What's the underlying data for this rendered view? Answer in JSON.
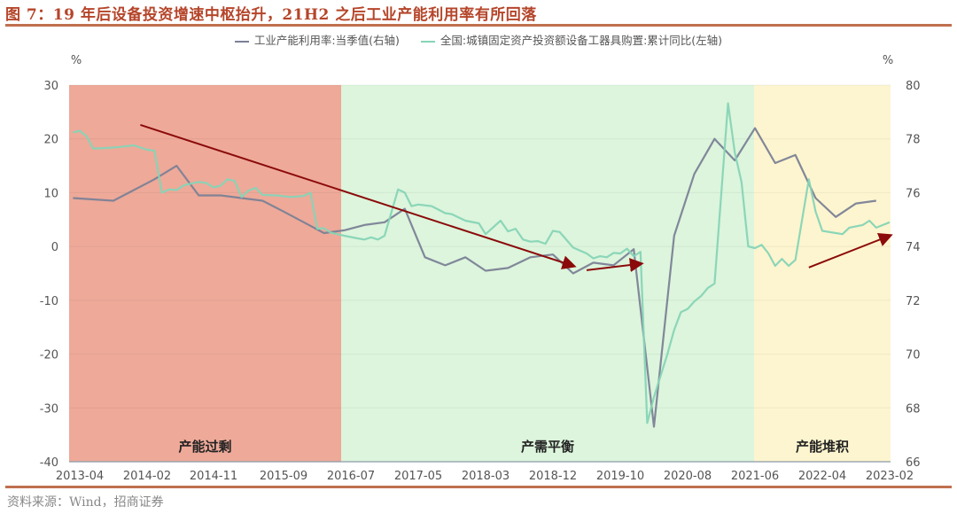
{
  "title": "图 7：19 年后设备投资增速中枢抬升，21H2 之后工业产能利用率有所回落",
  "source": "资料来源：Wind，招商证券",
  "legend": [
    {
      "label": "工业产能利用率:当季值(右轴)",
      "color": "#7b8196"
    },
    {
      "label": "全国:城镇固定资产投资额设备工器具购置:累计同比(左轴)",
      "color": "#86d4b6"
    }
  ],
  "colors": {
    "utilization": "#7b8196",
    "equipment": "#86d4b6",
    "arrow": "#8b0a0a",
    "region_overcapacity": "#eea999",
    "region_balance": "#dcf5dc",
    "region_accumulation": "#fdf5cf"
  },
  "chart_data": {
    "type": "line",
    "title": "19 年后设备投资增速中枢抬升，21H2 之后工业产能利用率有所回落",
    "left_axis": {
      "label": "%",
      "ticks": [
        30,
        20,
        10,
        0,
        -10,
        -20,
        -30,
        -40
      ],
      "range": [
        -40,
        30
      ]
    },
    "right_axis": {
      "label": "%",
      "ticks": [
        80,
        78,
        76,
        74,
        72,
        70,
        68,
        66
      ],
      "range": [
        66,
        80
      ]
    },
    "x_ticks": [
      "2013-04",
      "2014-02",
      "2014-11",
      "2015-09",
      "2016-07",
      "2017-05",
      "2018-03",
      "2018-12",
      "2019-10",
      "2020-08",
      "2021-06",
      "2022-04",
      "2023-02"
    ],
    "regions": [
      {
        "label": "产能过剩",
        "from": "2013-04",
        "to": "2016-07"
      },
      {
        "label": "产需平衡",
        "from": "2016-07",
        "to": "2021-06"
      },
      {
        "label": "产能堆积",
        "from": "2021-06",
        "to": "2023-02"
      }
    ],
    "series": [
      {
        "name": "工业产能利用率:当季值(右轴)",
        "axis": "right",
        "points": [
          [
            "2013-03",
            75.8
          ],
          [
            "2013-09",
            75.7
          ],
          [
            "2014-03",
            76.5
          ],
          [
            "2014-06",
            77.0
          ],
          [
            "2014-09",
            75.9
          ],
          [
            "2014-12",
            75.9
          ],
          [
            "2015-03",
            75.8
          ],
          [
            "2015-06",
            75.7
          ],
          [
            "2015-09",
            75.3
          ],
          [
            "2015-12",
            74.9
          ],
          [
            "2016-03",
            74.5
          ],
          [
            "2016-06",
            74.6
          ],
          [
            "2016-09",
            74.8
          ],
          [
            "2016-12",
            74.9
          ],
          [
            "2017-03",
            75.4
          ],
          [
            "2017-06",
            73.6
          ],
          [
            "2017-09",
            73.3
          ],
          [
            "2017-12",
            73.6
          ],
          [
            "2018-03",
            73.1
          ],
          [
            "2018-06",
            73.2
          ],
          [
            "2018-09",
            73.6
          ],
          [
            "2018-12",
            73.7
          ],
          [
            "2019-03",
            73.0
          ],
          [
            "2019-06",
            73.4
          ],
          [
            "2019-09",
            73.3
          ],
          [
            "2019-12",
            73.9
          ],
          [
            "2020-03",
            67.3
          ],
          [
            "2020-06",
            74.4
          ],
          [
            "2020-09",
            76.7
          ],
          [
            "2020-12",
            78.0
          ],
          [
            "2021-03",
            77.2
          ],
          [
            "2021-06",
            78.4
          ],
          [
            "2021-09",
            77.1
          ],
          [
            "2021-12",
            77.4
          ],
          [
            "2022-03",
            75.8
          ],
          [
            "2022-06",
            75.1
          ],
          [
            "2022-09",
            75.6
          ],
          [
            "2022-12",
            75.7
          ]
        ]
      },
      {
        "name": "全国:城镇固定资产投资额设备工器具购置:累计同比(左轴)",
        "axis": "left",
        "points": [
          [
            "2013-03",
            21.2
          ],
          [
            "2013-04",
            21.5
          ],
          [
            "2013-05",
            20.5
          ],
          [
            "2013-06",
            18.2
          ],
          [
            "2013-08",
            18.3
          ],
          [
            "2013-10",
            18.5
          ],
          [
            "2013-12",
            18.8
          ],
          [
            "2014-02",
            18.0
          ],
          [
            "2014-03",
            17.8
          ],
          [
            "2014-04",
            10.0
          ],
          [
            "2014-05",
            10.6
          ],
          [
            "2014-06",
            10.5
          ],
          [
            "2014-07",
            11.4
          ],
          [
            "2014-09",
            12.0
          ],
          [
            "2014-10",
            11.8
          ],
          [
            "2014-11",
            11.0
          ],
          [
            "2014-12",
            11.3
          ],
          [
            "2015-01",
            12.5
          ],
          [
            "2015-02",
            12.2
          ],
          [
            "2015-03",
            9.2
          ],
          [
            "2015-04",
            10.4
          ],
          [
            "2015-05",
            10.9
          ],
          [
            "2015-06",
            9.6
          ],
          [
            "2015-08",
            9.5
          ],
          [
            "2015-10",
            9.2
          ],
          [
            "2015-12",
            9.4
          ],
          [
            "2016-01",
            10.0
          ],
          [
            "2016-02",
            3.3
          ],
          [
            "2016-03",
            3.4
          ],
          [
            "2016-04",
            2.6
          ],
          [
            "2016-06",
            2.0
          ],
          [
            "2016-08",
            1.5
          ],
          [
            "2016-09",
            1.3
          ],
          [
            "2016-10",
            1.7
          ],
          [
            "2016-11",
            1.3
          ],
          [
            "2016-12",
            2.0
          ],
          [
            "2017-02",
            10.6
          ],
          [
            "2017-03",
            10.0
          ],
          [
            "2017-04",
            7.5
          ],
          [
            "2017-05",
            7.8
          ],
          [
            "2017-07",
            7.5
          ],
          [
            "2017-09",
            6.2
          ],
          [
            "2017-10",
            6.0
          ],
          [
            "2017-12",
            4.8
          ],
          [
            "2018-02",
            4.3
          ],
          [
            "2018-03",
            2.3
          ],
          [
            "2018-05",
            4.8
          ],
          [
            "2018-06",
            2.8
          ],
          [
            "2018-07",
            3.3
          ],
          [
            "2018-08",
            1.3
          ],
          [
            "2018-09",
            0.9
          ],
          [
            "2018-10",
            1.0
          ],
          [
            "2018-11",
            0.5
          ],
          [
            "2018-12",
            2.9
          ],
          [
            "2019-01",
            2.7
          ],
          [
            "2019-03",
            -0.2
          ],
          [
            "2019-05",
            -1.3
          ],
          [
            "2019-06",
            -2.2
          ],
          [
            "2019-07",
            -1.8
          ],
          [
            "2019-08",
            -2.0
          ],
          [
            "2019-09",
            -1.2
          ],
          [
            "2019-10",
            -1.3
          ],
          [
            "2019-11",
            -0.4
          ],
          [
            "2019-12",
            -1.8
          ],
          [
            "2020-01",
            -1.0
          ],
          [
            "2020-02",
            -32.8
          ],
          [
            "2020-03",
            -28.0
          ],
          [
            "2020-05",
            -20.0
          ],
          [
            "2020-06",
            -15.5
          ],
          [
            "2020-07",
            -12.2
          ],
          [
            "2020-08",
            -11.6
          ],
          [
            "2020-09",
            -10.2
          ],
          [
            "2020-10",
            -9.2
          ],
          [
            "2020-11",
            -7.7
          ],
          [
            "2020-12",
            -6.9
          ],
          [
            "2021-02",
            26.6
          ],
          [
            "2021-03",
            17.5
          ],
          [
            "2021-04",
            12.0
          ],
          [
            "2021-05",
            0.0
          ],
          [
            "2021-06",
            -0.3
          ],
          [
            "2021-07",
            0.3
          ],
          [
            "2021-08",
            -1.3
          ],
          [
            "2021-09",
            -3.6
          ],
          [
            "2021-10",
            -2.3
          ],
          [
            "2021-11",
            -3.6
          ],
          [
            "2021-12",
            -2.5
          ],
          [
            "2022-02",
            12.5
          ],
          [
            "2022-03",
            6.5
          ],
          [
            "2022-04",
            2.9
          ],
          [
            "2022-06",
            2.5
          ],
          [
            "2022-07",
            2.3
          ],
          [
            "2022-08",
            3.5
          ],
          [
            "2022-10",
            4.0
          ],
          [
            "2022-11",
            4.8
          ],
          [
            "2022-12",
            3.5
          ],
          [
            "2023-02",
            4.5
          ]
        ]
      }
    ],
    "annotations": [
      {
        "type": "arrow",
        "desc": "long downward trend arrow",
        "from": [
          "2014-01",
          22.6
        ],
        "to": [
          "2019-03",
          -3.6
        ]
      },
      {
        "type": "arrow",
        "desc": "short flat arrow",
        "from": [
          "2019-05",
          -4.4
        ],
        "to": [
          "2020-01",
          -3.2
        ]
      },
      {
        "type": "arrow",
        "desc": "upward arrow",
        "from": [
          "2022-02",
          -3.9
        ],
        "to": [
          "2023-02",
          2.0
        ]
      }
    ]
  }
}
